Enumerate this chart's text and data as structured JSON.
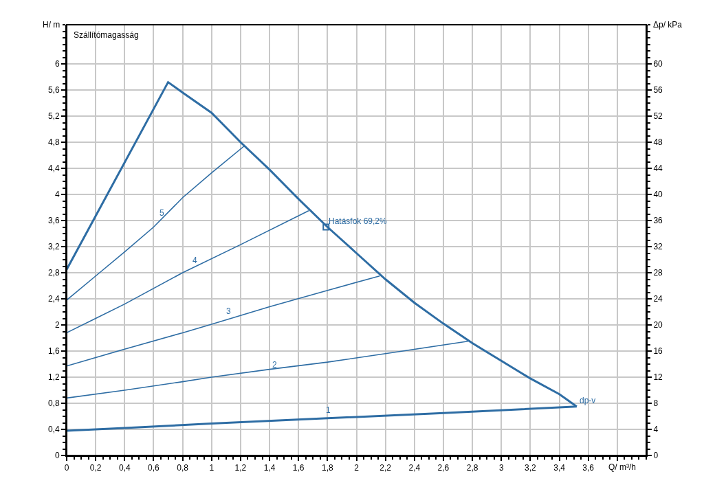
{
  "chart_data": {
    "type": "line",
    "xlabel": "Q/ m³/h",
    "ylabel": "H/ m",
    "y2label": "Δp/ kPa",
    "xlim": [
      0,
      4
    ],
    "ylim": [
      0,
      6.6
    ],
    "y2lim": [
      0,
      66
    ],
    "xticks": [
      0,
      {
        "value": 0.2,
        "label": "0,2"
      },
      {
        "value": 0.4,
        "label": "0,4"
      },
      {
        "value": 0.6,
        "label": "0,6"
      },
      {
        "value": 0.8,
        "label": "0,8"
      },
      1,
      {
        "value": 1.2,
        "label": "1,2"
      },
      {
        "value": 1.4,
        "label": "1,4"
      },
      {
        "value": 1.6,
        "label": "1,6"
      },
      {
        "value": 1.8,
        "label": "1,8"
      },
      2,
      {
        "value": 2.2,
        "label": "2,2"
      },
      {
        "value": 2.4,
        "label": "2,4"
      },
      {
        "value": 2.6,
        "label": "2,6"
      },
      {
        "value": 2.8,
        "label": "2,8"
      },
      3,
      {
        "value": 3.2,
        "label": "3,2"
      },
      {
        "value": 3.4,
        "label": "3,4"
      },
      {
        "value": 3.6,
        "label": "3,6"
      },
      {
        "value": 3.8,
        "label": null
      }
    ],
    "yticks": [
      0,
      {
        "value": 0.4,
        "label": "0,4"
      },
      {
        "value": 0.8,
        "label": "0,8"
      },
      {
        "value": 1.2,
        "label": "1,2"
      },
      {
        "value": 1.6,
        "label": "1,6"
      },
      2,
      {
        "value": 2.4,
        "label": "2,4"
      },
      {
        "value": 2.8,
        "label": "2,8"
      },
      {
        "value": 3.2,
        "label": "3,2"
      },
      {
        "value": 3.6,
        "label": "3,6"
      },
      4,
      {
        "value": 4.4,
        "label": "4,4"
      },
      {
        "value": 4.8,
        "label": "4,8"
      },
      {
        "value": 5.2,
        "label": "5,2"
      },
      {
        "value": 5.6,
        "label": "5,6"
      },
      6
    ],
    "y2ticks": [
      0,
      4,
      8,
      12,
      16,
      20,
      24,
      28,
      32,
      36,
      40,
      44,
      48,
      52,
      56,
      60
    ],
    "grid": true,
    "marker": "none",
    "line_style": "solid",
    "series": [
      {
        "color": "#2e6da4",
        "x": [
          0,
          0.7,
          0.8,
          1.0,
          1.2,
          1.4,
          1.6,
          1.8,
          2.0,
          2.2,
          2.4,
          2.6,
          2.8,
          3.0,
          3.2,
          3.4,
          3.52
        ],
        "values": [
          2.85,
          5.72,
          5.56,
          5.25,
          4.8,
          4.38,
          3.93,
          3.5,
          3.1,
          2.7,
          2.34,
          2.02,
          1.72,
          1.45,
          1.18,
          0.94,
          0.75
        ]
      },
      {
        "color": "#2e6da4",
        "x": [
          0,
          0.4,
          1.0,
          1.8,
          2.6,
          3.52
        ],
        "values": [
          0.38,
          0.42,
          0.49,
          0.57,
          0.65,
          0.75
        ]
      },
      {
        "color": "#2e6da4",
        "x": [
          0,
          0.4,
          0.8,
          1.0,
          1.4,
          1.8,
          2.2,
          2.77
        ],
        "values": [
          0.88,
          1.0,
          1.13,
          1.2,
          1.32,
          1.43,
          1.56,
          1.75
        ]
      },
      {
        "color": "#2e6da4",
        "x": [
          0,
          0.4,
          0.8,
          1.0,
          1.4,
          1.8,
          2.16
        ],
        "values": [
          1.37,
          1.63,
          1.88,
          2.01,
          2.28,
          2.53,
          2.75
        ]
      },
      {
        "color": "#2e6da4",
        "x": [
          0,
          0.2,
          0.4,
          0.8,
          1.2,
          1.67
        ],
        "values": [
          1.88,
          2.1,
          2.32,
          2.8,
          3.23,
          3.75
        ]
      },
      {
        "color": "#2e6da4",
        "x": [
          0,
          0.2,
          0.4,
          0.6,
          0.8,
          1.0,
          1.23
        ],
        "values": [
          2.38,
          2.75,
          3.12,
          3.5,
          3.95,
          4.33,
          4.75
        ]
      },
      {
        "type": "scatter",
        "marker": "square",
        "color": "#2e6da4",
        "x": [
          1.79
        ],
        "values": [
          3.5
        ]
      }
    ],
    "annotations": [
      "Szállítómagasság",
      {
        "text": "1",
        "x": 1.77,
        "y": 0.6
      },
      {
        "text": "2",
        "x": 1.4,
        "y": 1.3
      },
      {
        "text": "3",
        "x": 1.08,
        "y": 2.12
      },
      {
        "text": "4",
        "x": 0.85,
        "y": 2.9
      },
      {
        "text": "5",
        "x": 0.62,
        "y": 3.62
      },
      {
        "text": "Hatásfok 69,2%",
        "x": 1.79,
        "y": 3.5
      },
      {
        "text": "dp-v",
        "x": 3.52,
        "y": 0.75
      }
    ]
  }
}
